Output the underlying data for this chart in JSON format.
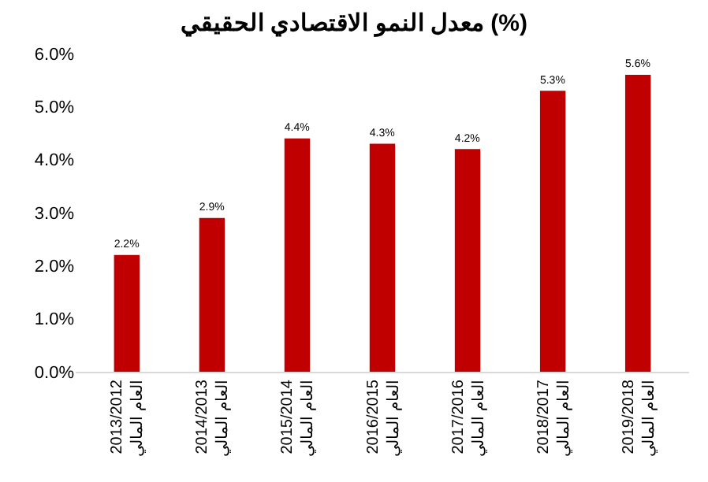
{
  "chart_data": {
    "type": "bar",
    "title": "معدل النمو الاقتصادي الحقيقي (%)",
    "categories": [
      "2013/2012\nالعام المالي",
      "2014/2013\nالعام المالي",
      "2015/2014\nالعام المالي",
      "2016/2015\nالعام المالي",
      "2017/2016\nالعام المالي",
      "2018/2017\nالعام المالي",
      "2019/2018\nالعام المالي"
    ],
    "values": [
      2.2,
      2.9,
      4.4,
      4.3,
      4.2,
      5.3,
      5.6
    ],
    "value_labels": [
      "2.2%",
      "2.9%",
      "4.4%",
      "4.3%",
      "4.2%",
      "5.3%",
      "5.6%"
    ],
    "color": "#c00000",
    "ylim": [
      0,
      6
    ],
    "yticks": [
      {
        "value": 0,
        "label": "0.0%"
      },
      {
        "value": 1,
        "label": "1.0%"
      },
      {
        "value": 2,
        "label": "2.0%"
      },
      {
        "value": 3,
        "label": "3.0%"
      },
      {
        "value": 4,
        "label": "4.0%"
      },
      {
        "value": 5,
        "label": "5.0%"
      },
      {
        "value": 6,
        "label": "6.0%"
      }
    ]
  }
}
